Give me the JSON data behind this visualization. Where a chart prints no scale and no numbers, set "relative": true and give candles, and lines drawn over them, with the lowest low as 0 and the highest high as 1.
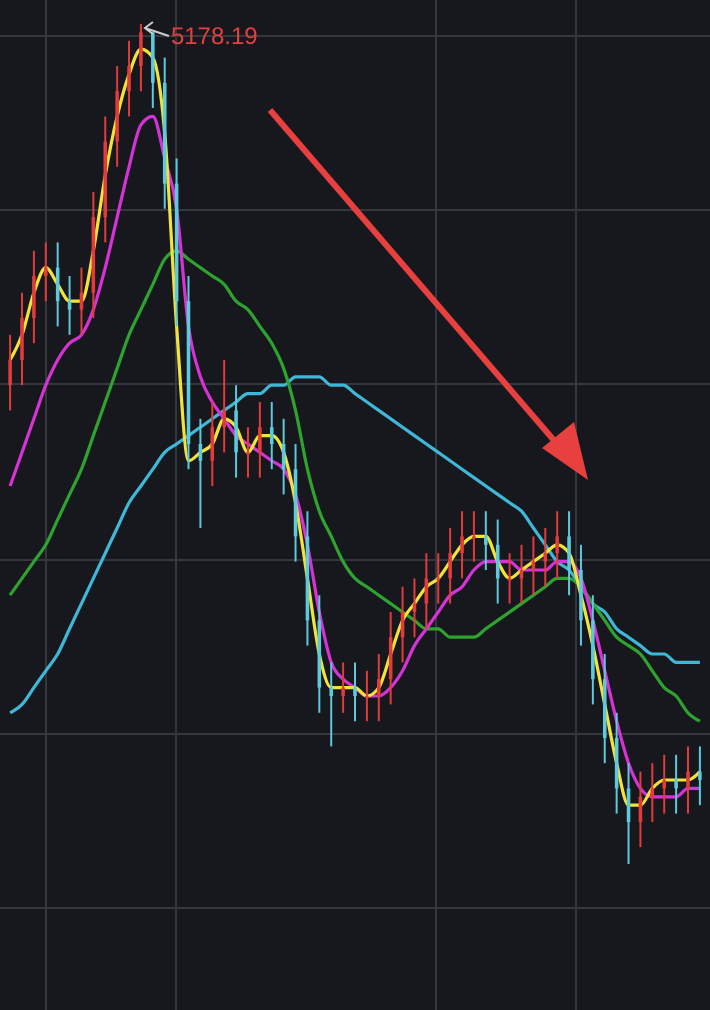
{
  "chart_data": {
    "type": "candlestick",
    "relative": true,
    "grid": true,
    "categories": [
      null,
      null,
      null,
      null,
      null,
      null,
      null,
      null,
      null,
      null,
      null,
      null,
      null,
      null,
      null,
      null,
      null,
      null,
      null,
      null,
      null,
      null,
      null,
      null,
      null,
      null,
      null,
      null,
      null,
      null,
      null,
      null,
      null,
      null,
      null,
      null,
      null,
      null,
      null,
      null,
      null,
      null,
      null,
      null,
      null,
      null,
      null,
      null,
      null,
      null,
      null,
      null,
      null,
      null,
      null,
      null,
      null,
      null,
      null
    ],
    "ohlc": [
      [
        0.57,
        0.63,
        0.54,
        0.6
      ],
      [
        0.6,
        0.68,
        0.57,
        0.65
      ],
      [
        0.65,
        0.73,
        0.62,
        0.7
      ],
      [
        0.7,
        0.74,
        0.67,
        0.71
      ],
      [
        0.71,
        0.74,
        0.64,
        0.67
      ],
      [
        0.67,
        0.7,
        0.63,
        0.66
      ],
      [
        0.66,
        0.71,
        0.63,
        0.68
      ],
      [
        0.68,
        0.8,
        0.65,
        0.77
      ],
      [
        0.77,
        0.89,
        0.74,
        0.86
      ],
      [
        0.86,
        0.95,
        0.83,
        0.92
      ],
      [
        0.92,
        0.98,
        0.89,
        0.95
      ],
      [
        0.95,
        1,
        0.92,
        0.99
      ],
      [
        0.99,
        0.99,
        0.9,
        0.93
      ],
      [
        0.93,
        0.96,
        0.78,
        0.81
      ],
      [
        0.81,
        0.84,
        0.64,
        0.67
      ],
      [
        0.67,
        0.7,
        0.47,
        0.5
      ],
      [
        0.5,
        0.53,
        0.4,
        0.48
      ],
      [
        0.48,
        0.55,
        0.45,
        0.52
      ],
      [
        0.52,
        0.6,
        0.49,
        0.54
      ],
      [
        0.54,
        0.57,
        0.46,
        0.49
      ],
      [
        0.49,
        0.52,
        0.46,
        0.49
      ],
      [
        0.49,
        0.55,
        0.46,
        0.52
      ],
      [
        0.52,
        0.55,
        0.47,
        0.5
      ],
      [
        0.5,
        0.53,
        0.44,
        0.47
      ],
      [
        0.47,
        0.5,
        0.36,
        0.39
      ],
      [
        0.39,
        0.42,
        0.26,
        0.29
      ],
      [
        0.29,
        0.32,
        0.18,
        0.21
      ],
      [
        0.21,
        0.24,
        0.14,
        0.2
      ],
      [
        0.2,
        0.24,
        0.18,
        0.21
      ],
      [
        0.21,
        0.24,
        0.17,
        0.2
      ],
      [
        0.2,
        0.23,
        0.17,
        0.2
      ],
      [
        0.2,
        0.25,
        0.17,
        0.22
      ],
      [
        0.22,
        0.3,
        0.19,
        0.27
      ],
      [
        0.27,
        0.33,
        0.24,
        0.3
      ],
      [
        0.3,
        0.34,
        0.27,
        0.31
      ],
      [
        0.31,
        0.37,
        0.28,
        0.34
      ],
      [
        0.34,
        0.37,
        0.31,
        0.34
      ],
      [
        0.34,
        0.4,
        0.31,
        0.37
      ],
      [
        0.37,
        0.42,
        0.34,
        0.39
      ],
      [
        0.39,
        0.42,
        0.36,
        0.39
      ],
      [
        0.39,
        0.42,
        0.35,
        0.38
      ],
      [
        0.38,
        0.41,
        0.31,
        0.34
      ],
      [
        0.34,
        0.37,
        0.31,
        0.34
      ],
      [
        0.34,
        0.38,
        0.31,
        0.35
      ],
      [
        0.35,
        0.39,
        0.32,
        0.36
      ],
      [
        0.36,
        0.4,
        0.33,
        0.37
      ],
      [
        0.37,
        0.42,
        0.34,
        0.39
      ],
      [
        0.39,
        0.42,
        0.32,
        0.35
      ],
      [
        0.35,
        0.38,
        0.26,
        0.29
      ],
      [
        0.29,
        0.32,
        0.19,
        0.22
      ],
      [
        0.22,
        0.25,
        0.12,
        0.15
      ],
      [
        0.15,
        0.18,
        0.06,
        0.09
      ],
      [
        0.09,
        0.12,
        0,
        0.05
      ],
      [
        0.05,
        0.11,
        0.02,
        0.08
      ],
      [
        0.08,
        0.12,
        0.05,
        0.09
      ],
      [
        0.09,
        0.13,
        0.06,
        0.1
      ],
      [
        0.1,
        0.13,
        0.06,
        0.09
      ],
      [
        0.09,
        0.14,
        0.06,
        0.11
      ],
      [
        0.11,
        0.14,
        0.07,
        0.1
      ]
    ],
    "colors": [
      "#e23b3b",
      "#e23b3b",
      "#e23b3b",
      "#e23b3b",
      "#5cc9dc",
      "#5cc9dc",
      "#e23b3b",
      "#e23b3b",
      "#e23b3b",
      "#e23b3b",
      "#e23b3b",
      "#e23b3b",
      "#5cc9dc",
      "#5cc9dc",
      "#5cc9dc",
      "#5cc9dc",
      "#5cc9dc",
      "#e23b3b",
      "#e23b3b",
      "#5cc9dc",
      "#e23b3b",
      "#e23b3b",
      "#5cc9dc",
      "#5cc9dc",
      "#5cc9dc",
      "#5cc9dc",
      "#5cc9dc",
      "#5cc9dc",
      "#e23b3b",
      "#5cc9dc",
      "#e23b3b",
      "#e23b3b",
      "#e23b3b",
      "#e23b3b",
      "#e23b3b",
      "#e23b3b",
      "#e23b3b",
      "#e23b3b",
      "#e23b3b",
      "#e23b3b",
      "#5cc9dc",
      "#5cc9dc",
      "#e23b3b",
      "#e23b3b",
      "#e23b3b",
      "#e23b3b",
      "#e23b3b",
      "#5cc9dc",
      "#5cc9dc",
      "#5cc9dc",
      "#5cc9dc",
      "#5cc9dc",
      "#5cc9dc",
      "#e23b3b",
      "#e23b3b",
      "#e23b3b",
      "#5cc9dc",
      "#e23b3b",
      "#5cc9dc"
    ],
    "series": [
      {
        "type": "line",
        "color": "#3fb7d6",
        "values": [
          0.18,
          0.19,
          0.21,
          0.23,
          0.25,
          0.28,
          0.31,
          0.34,
          0.37,
          0.4,
          0.43,
          0.45,
          0.47,
          0.49,
          0.5,
          0.51,
          0.52,
          0.53,
          0.54,
          0.55,
          0.56,
          0.56,
          0.57,
          0.57,
          0.58,
          0.58,
          0.58,
          0.57,
          0.57,
          0.56,
          0.55,
          0.54,
          0.53,
          0.52,
          0.51,
          0.5,
          0.49,
          0.48,
          0.47,
          0.46,
          0.45,
          0.44,
          0.43,
          0.42,
          0.4,
          0.38,
          0.36,
          0.35,
          0.33,
          0.31,
          0.3,
          0.28,
          0.27,
          0.26,
          0.25,
          0.25,
          0.24,
          0.24,
          0.24
        ]
      },
      {
        "type": "line",
        "color": "#2fa32f",
        "values": [
          0.32,
          0.34,
          0.36,
          0.38,
          0.41,
          0.44,
          0.47,
          0.51,
          0.55,
          0.59,
          0.63,
          0.66,
          0.69,
          0.72,
          0.73,
          0.72,
          0.71,
          0.7,
          0.69,
          0.67,
          0.66,
          0.64,
          0.62,
          0.59,
          0.54,
          0.47,
          0.42,
          0.39,
          0.36,
          0.34,
          0.33,
          0.32,
          0.31,
          0.3,
          0.29,
          0.28,
          0.28,
          0.27,
          0.27,
          0.27,
          0.28,
          0.29,
          0.3,
          0.31,
          0.32,
          0.33,
          0.34,
          0.34,
          0.33,
          0.31,
          0.29,
          0.27,
          0.26,
          0.25,
          0.23,
          0.21,
          0.2,
          0.18,
          0.17
        ]
      },
      {
        "type": "line",
        "color": "#d633d6",
        "values": [
          0.45,
          0.49,
          0.53,
          0.57,
          0.6,
          0.62,
          0.63,
          0.66,
          0.71,
          0.77,
          0.83,
          0.88,
          0.89,
          0.84,
          0.78,
          0.64,
          0.58,
          0.55,
          0.53,
          0.51,
          0.5,
          0.49,
          0.48,
          0.47,
          0.44,
          0.38,
          0.3,
          0.24,
          0.22,
          0.21,
          0.2,
          0.2,
          0.21,
          0.23,
          0.26,
          0.28,
          0.3,
          0.32,
          0.33,
          0.35,
          0.36,
          0.36,
          0.36,
          0.35,
          0.35,
          0.35,
          0.36,
          0.36,
          0.34,
          0.29,
          0.23,
          0.17,
          0.12,
          0.09,
          0.08,
          0.08,
          0.08,
          0.09,
          0.09
        ]
      },
      {
        "type": "line",
        "color": "#f2e33a",
        "values": [
          0.6,
          0.63,
          0.68,
          0.71,
          0.69,
          0.67,
          0.67,
          0.73,
          0.82,
          0.89,
          0.94,
          0.97,
          0.96,
          0.87,
          0.64,
          0.48,
          0.49,
          0.5,
          0.53,
          0.52,
          0.49,
          0.51,
          0.51,
          0.49,
          0.43,
          0.34,
          0.25,
          0.21,
          0.21,
          0.21,
          0.2,
          0.21,
          0.25,
          0.29,
          0.31,
          0.33,
          0.34,
          0.36,
          0.38,
          0.39,
          0.39,
          0.36,
          0.34,
          0.35,
          0.36,
          0.37,
          0.38,
          0.37,
          0.32,
          0.26,
          0.19,
          0.12,
          0.07,
          0.07,
          0.09,
          0.1,
          0.1,
          0.1,
          0.11
        ]
      }
    ],
    "annotations": [
      "5178.19"
    ]
  }
}
